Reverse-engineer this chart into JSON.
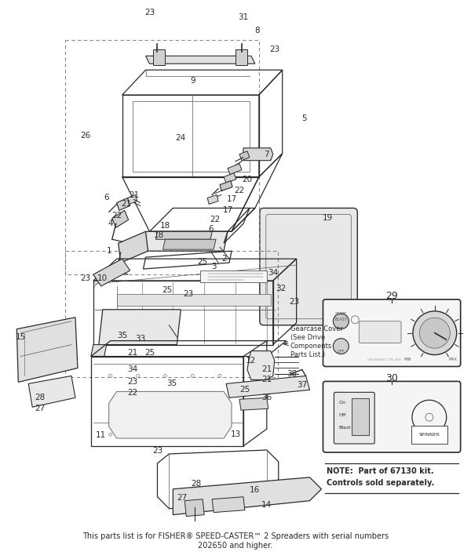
{
  "bg_color": "#ffffff",
  "footer_line1": "This parts list is for FISHER® SPEED-CASTER™ 2 Spreaders with serial numbers",
  "footer_line2": "202650 and higher.",
  "note_line1": "NOTE:  Part of 67130 kit.",
  "note_line2": "Controls sold separately.",
  "gearcase_text": [
    "Gearcase Cover",
    "(See Drive",
    "Components",
    "Parts List.)"
  ]
}
